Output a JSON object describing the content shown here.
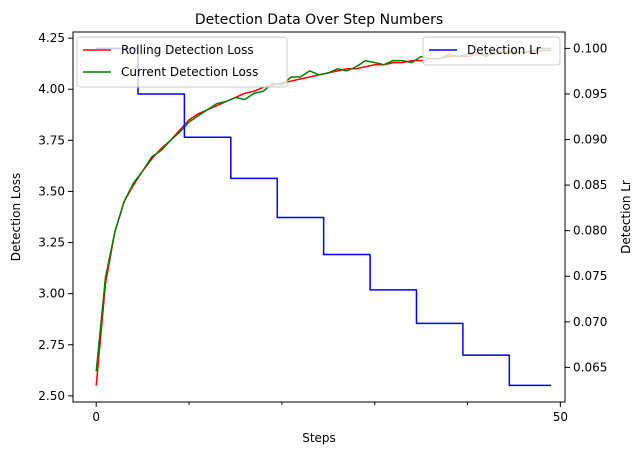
{
  "chart_data": {
    "type": "line",
    "title": "Detection Data Over Step Numbers",
    "xlabel": "Steps",
    "ylabel_left": "Detection Loss",
    "ylabel_right": "Detection Lr",
    "xlim": [
      -2.5,
      50.5
    ],
    "ylim_left": [
      2.47,
      4.28
    ],
    "ylim_right": [
      0.0612,
      0.1018
    ],
    "x_ticks": [
      0,
      50
    ],
    "x_minor_ticks": [
      10,
      20,
      30,
      40
    ],
    "y_left_ticks": [
      2.5,
      2.75,
      3.0,
      3.25,
      3.5,
      3.75,
      4.0,
      4.25
    ],
    "y_left_tick_labels": [
      "2.50",
      "2.75",
      "3.00",
      "3.25",
      "3.50",
      "3.75",
      "4.00",
      "4.25"
    ],
    "y_right_ticks": [
      0.065,
      0.07,
      0.075,
      0.08,
      0.085,
      0.09,
      0.095,
      0.1
    ],
    "y_right_tick_labels": [
      "0.065",
      "0.070",
      "0.075",
      "0.080",
      "0.085",
      "0.090",
      "0.095",
      "0.100"
    ],
    "grid": false,
    "legend_left_placement": "upper-left",
    "legend_right_placement": "upper-right",
    "x": [
      0,
      1,
      2,
      3,
      4,
      5,
      6,
      7,
      8,
      9,
      10,
      11,
      12,
      13,
      14,
      15,
      16,
      17,
      18,
      19,
      20,
      21,
      22,
      23,
      24,
      25,
      26,
      27,
      28,
      29,
      30,
      31,
      32,
      33,
      34,
      35,
      36,
      37,
      38,
      39,
      40,
      41,
      42,
      43,
      44,
      45,
      46,
      47,
      48,
      49
    ],
    "series": [
      {
        "name": "Rolling Detection Loss",
        "axis": "left",
        "color": "#ff0000",
        "values": [
          2.55,
          3.05,
          3.3,
          3.45,
          3.53,
          3.6,
          3.66,
          3.71,
          3.75,
          3.8,
          3.85,
          3.88,
          3.9,
          3.92,
          3.94,
          3.96,
          3.98,
          3.99,
          4.01,
          4.02,
          4.03,
          4.04,
          4.05,
          4.06,
          4.07,
          4.08,
          4.09,
          4.1,
          4.1,
          4.11,
          4.12,
          4.12,
          4.13,
          4.13,
          4.14,
          4.14,
          4.15,
          4.15,
          4.16,
          4.16,
          4.16,
          4.17,
          4.17,
          4.17,
          4.18,
          4.18,
          4.18,
          4.18,
          4.19,
          4.19
        ]
      },
      {
        "name": "Current Detection Loss",
        "axis": "left",
        "color": "#008000",
        "values": [
          2.62,
          3.08,
          3.3,
          3.45,
          3.54,
          3.6,
          3.67,
          3.7,
          3.75,
          3.79,
          3.84,
          3.87,
          3.9,
          3.93,
          3.94,
          3.96,
          3.95,
          3.98,
          3.99,
          4.03,
          4.02,
          4.06,
          4.06,
          4.09,
          4.07,
          4.08,
          4.1,
          4.09,
          4.11,
          4.14,
          4.13,
          4.12,
          4.14,
          4.14,
          4.13,
          4.16,
          4.15,
          4.15,
          4.17,
          4.16,
          4.17,
          4.18,
          4.16,
          4.19,
          4.18,
          4.19,
          4.18,
          4.19,
          4.2,
          4.2
        ]
      },
      {
        "name": "Detection Lr",
        "axis": "right",
        "color": "#0000ff",
        "shape": "step",
        "values": [
          0.1,
          0.1,
          0.1,
          0.1,
          0.1,
          0.095,
          0.095,
          0.095,
          0.095,
          0.095,
          0.09025,
          0.09025,
          0.09025,
          0.09025,
          0.09025,
          0.0857375,
          0.0857375,
          0.0857375,
          0.0857375,
          0.0857375,
          0.081450625,
          0.081450625,
          0.081450625,
          0.081450625,
          0.081450625,
          0.07737809375,
          0.07737809375,
          0.07737809375,
          0.07737809375,
          0.07737809375,
          0.0735091890625,
          0.0735091890625,
          0.0735091890625,
          0.0735091890625,
          0.0735091890625,
          0.069833729609375,
          0.069833729609375,
          0.069833729609375,
          0.069833729609375,
          0.069833729609375,
          0.06634204312890625,
          0.06634204312890625,
          0.06634204312890625,
          0.06634204312890625,
          0.06634204312890625,
          0.06302494097246095,
          0.06302494097246095,
          0.06302494097246095,
          0.06302494097246095,
          0.06302494097246095
        ]
      }
    ]
  }
}
